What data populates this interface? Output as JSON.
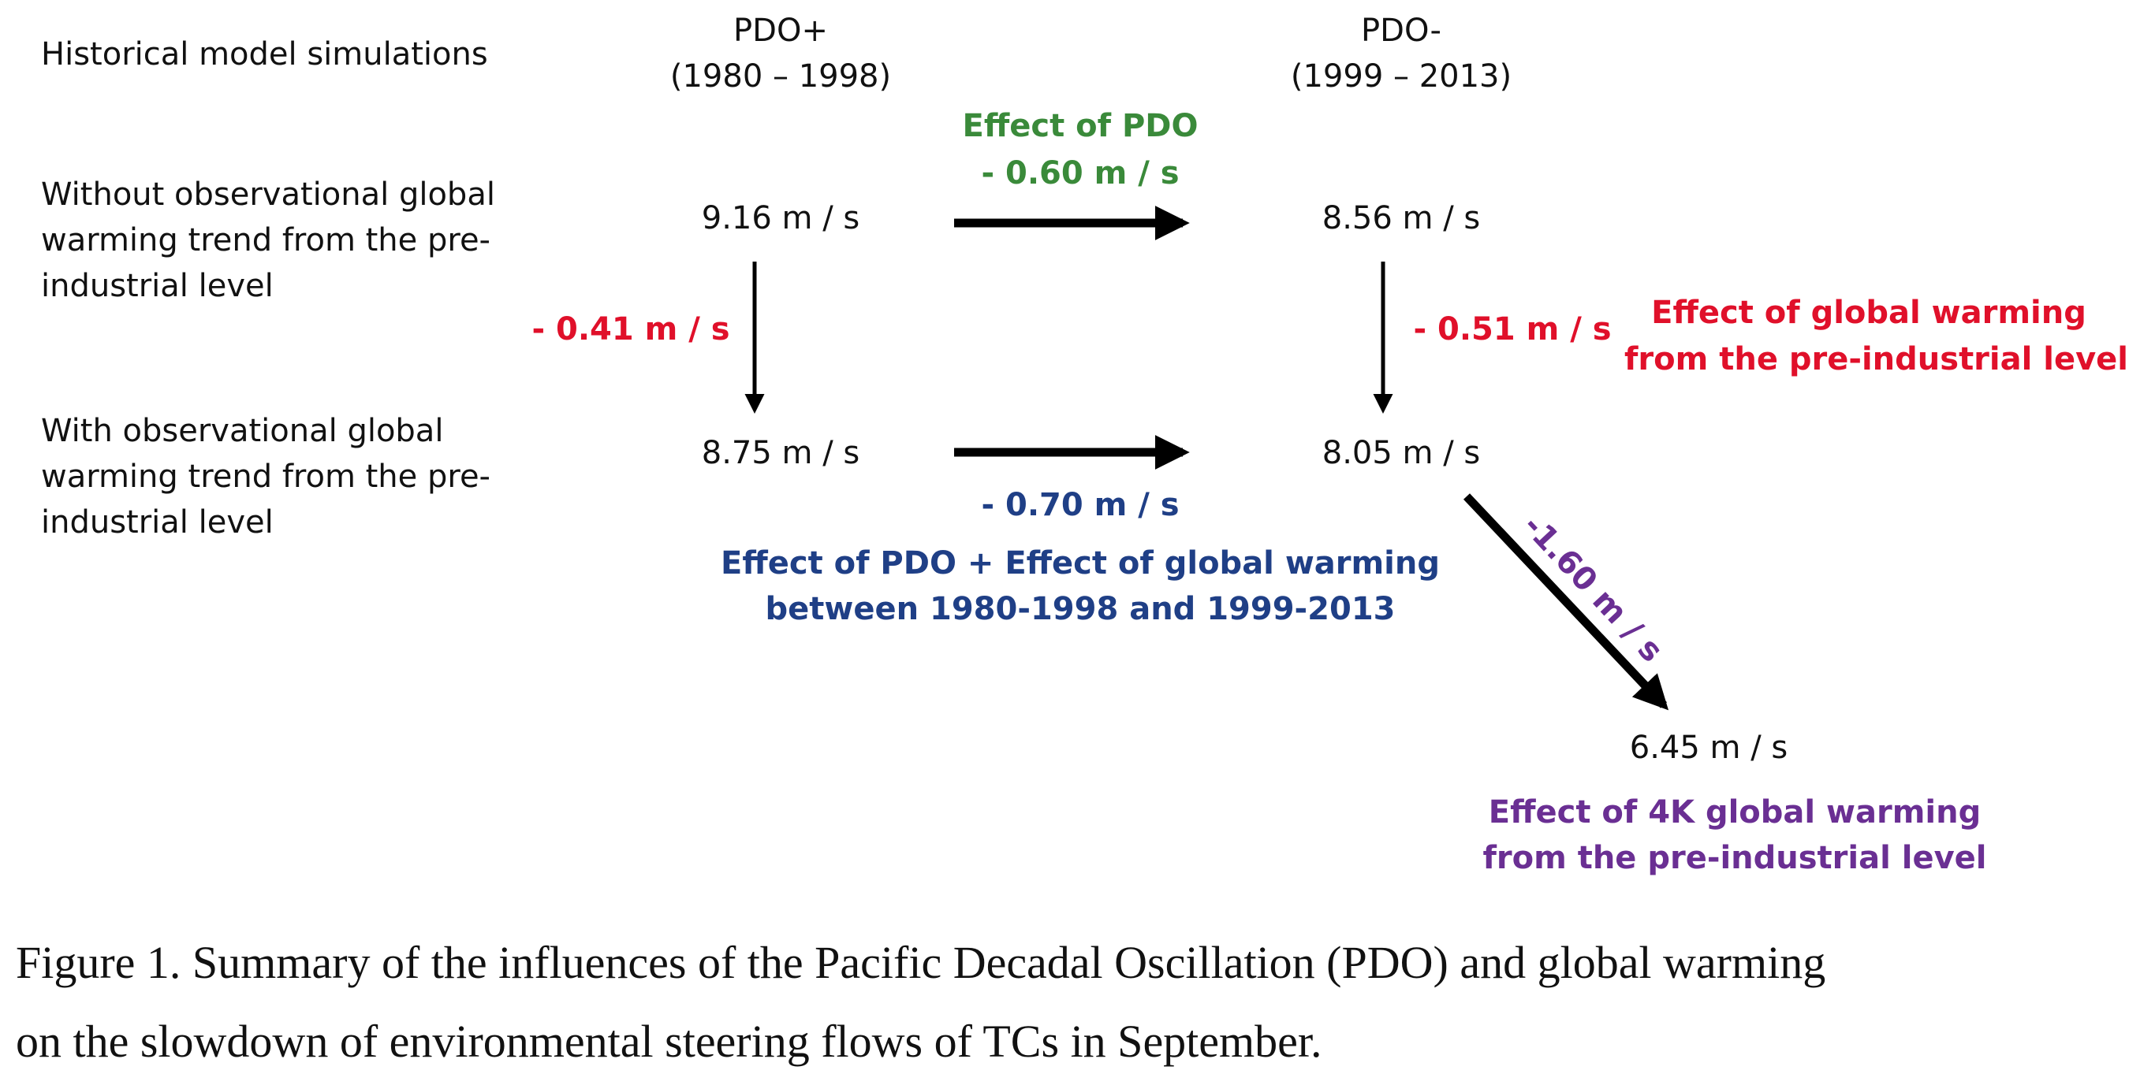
{
  "header": {
    "row_label": "Historical model simulations",
    "col1_title": "PDO+",
    "col1_period": "(1980 – 1998)",
    "col2_title": "PDO-",
    "col2_period": "(1999 – 2013)"
  },
  "rows": {
    "without_line1": "Without observational global",
    "without_line2": "warming trend from the pre-",
    "without_line3": "industrial level",
    "with_line1": "With observational global",
    "with_line2": "warming trend from the pre-",
    "with_line3": "industrial level"
  },
  "values": {
    "pdo_plus_without": "9.16 m / s",
    "pdo_minus_without": "8.56 m / s",
    "pdo_plus_with": "8.75 m / s",
    "pdo_minus_with": "8.05 m / s",
    "future_4k": "6.45 m / s"
  },
  "effects": {
    "pdo_title": "Effect of PDO",
    "pdo_value": "- 0.60 m / s",
    "gw_left_value": "- 0.41 m / s",
    "gw_right_value": "- 0.51 m / s",
    "gw_line1": "Effect of global warming",
    "gw_line2": "from the pre-industrial level",
    "combined_value": "- 0.70 m / s",
    "combined_line1": "Effect of PDO + Effect of global warming",
    "combined_line2": "between 1980-1998 and 1999-2013",
    "k4_value": "-1.60 m / s",
    "k4_line1": "Effect of 4K global warming",
    "k4_line2": "from the pre-industrial level"
  },
  "colors": {
    "pdo_effect": "#3a8a3a",
    "gw_effect": "#e0102a",
    "combined_effect": "#1f3f86",
    "k4_effect": "#6a2f93",
    "arrow": "#000000"
  },
  "caption": {
    "line1": "Figure 1. Summary of the influences of the Pacific Decadal Oscillation (PDO) and global warming",
    "line2": "on the slowdown of environmental steering flows of TCs in September."
  }
}
